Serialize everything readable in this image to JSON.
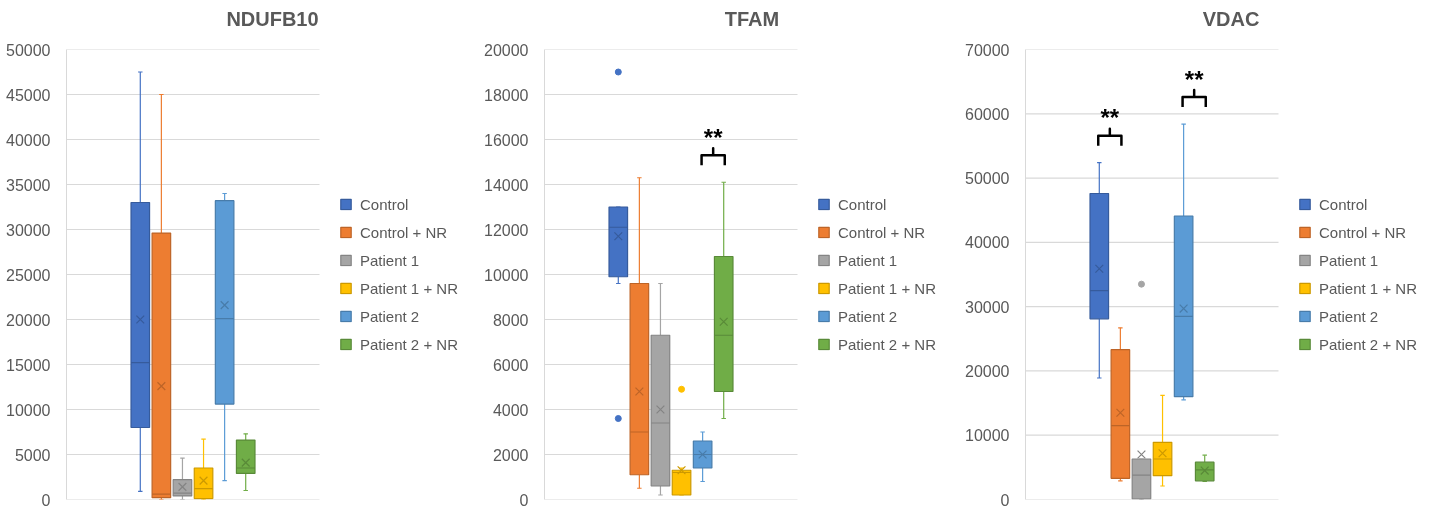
{
  "chart_data": [
    {
      "type": "box",
      "title": "NDUFB10",
      "categories": [
        null
      ],
      "ylim": [
        0,
        50000
      ],
      "yticks": [
        0,
        5000,
        10000,
        15000,
        20000,
        25000,
        30000,
        35000,
        40000,
        45000,
        50000
      ],
      "grid": "y",
      "legend": "right",
      "tick_labels": "y",
      "series": [
        {
          "name": "Control",
          "color": "#4472c4",
          "boxes": [
            {
              "low": 900,
              "q1": 8000,
              "median": 15200,
              "q3": 33000,
              "high": 47500,
              "mean": 20000
            }
          ]
        },
        {
          "name": "Control + NR",
          "color": "#ed7d31",
          "boxes": [
            {
              "low": 0,
              "q1": 200,
              "median": 600,
              "q3": 29600,
              "high": 45000,
              "mean": 12600
            }
          ]
        },
        {
          "name": "Patient 1",
          "color": "#a5a5a5",
          "boxes": [
            {
              "low": 0,
              "q1": 400,
              "median": 700,
              "q3": 2200,
              "high": 4600,
              "mean": 1400
            }
          ]
        },
        {
          "name": "Patient 1 + NR",
          "color": "#ffc000",
          "boxes": [
            {
              "low": 0,
              "q1": 100,
              "median": 1200,
              "q3": 3500,
              "high": 6700,
              "mean": 2100
            }
          ]
        },
        {
          "name": "Patient 2",
          "color": "#5b9bd5",
          "boxes": [
            {
              "low": 2100,
              "q1": 10600,
              "median": 20100,
              "q3": 33200,
              "high": 34000,
              "mean": 21600
            }
          ]
        },
        {
          "name": "Patient 2 + NR",
          "color": "#70ad47",
          "boxes": [
            {
              "low": 1000,
              "q1": 2900,
              "median": 3500,
              "q3": 6600,
              "high": 7300,
              "mean": 4100
            }
          ]
        }
      ]
    },
    {
      "type": "box",
      "title": "TFAM",
      "categories": [
        null
      ],
      "ylim": [
        0,
        20000
      ],
      "yticks": [
        0,
        2000,
        4000,
        6000,
        8000,
        10000,
        12000,
        14000,
        16000,
        18000,
        20000
      ],
      "grid": "y",
      "legend": "right",
      "tick_labels": "y",
      "annotations": [
        "**"
      ],
      "series": [
        {
          "name": "Control",
          "color": "#4472c4",
          "boxes": [
            {
              "low": 9600,
              "q1": 9900,
              "median": 12100,
              "q3": 13000,
              "high": 13000,
              "mean": 11700,
              "outliers": [
                19000,
                3600
              ]
            }
          ]
        },
        {
          "name": "Control + NR",
          "color": "#ed7d31",
          "boxes": [
            {
              "low": 500,
              "q1": 1100,
              "median": 3000,
              "q3": 9600,
              "high": 14300,
              "mean": 4800
            }
          ]
        },
        {
          "name": "Patient 1",
          "color": "#a5a5a5",
          "boxes": [
            {
              "low": 200,
              "q1": 600,
              "median": 3400,
              "q3": 7300,
              "high": 9600,
              "mean": 4000
            }
          ]
        },
        {
          "name": "Patient 1 + NR",
          "color": "#ffc000",
          "boxes": [
            {
              "low": 200,
              "q1": 200,
              "median": 1200,
              "q3": 1300,
              "high": 1400,
              "mean": 1300,
              "outliers": [
                4900
              ]
            }
          ]
        },
        {
          "name": "Patient 2",
          "color": "#5b9bd5",
          "boxes": [
            {
              "low": 800,
              "q1": 1400,
              "median": 2000,
              "q3": 2600,
              "high": 3000,
              "mean": 2000
            }
          ]
        },
        {
          "name": "Patient 2 + NR",
          "color": "#70ad47",
          "boxes": [
            {
              "low": 3600,
              "q1": 4800,
              "median": 7300,
              "q3": 10800,
              "high": 14100,
              "mean": 7900
            }
          ]
        }
      ]
    },
    {
      "type": "box",
      "title": "VDAC",
      "categories": [
        null
      ],
      "ylim": [
        0,
        70000
      ],
      "yticks": [
        0,
        10000,
        20000,
        30000,
        40000,
        50000,
        60000,
        70000
      ],
      "grid": "y",
      "legend": "right",
      "tick_labels": "y",
      "annotations": [
        "**",
        "**"
      ],
      "series": [
        {
          "name": "Control",
          "color": "#4472c4",
          "boxes": [
            {
              "low": 18900,
              "q1": 28100,
              "median": 32500,
              "q3": 47600,
              "high": 52400,
              "mean": 35900
            }
          ]
        },
        {
          "name": "Control + NR",
          "color": "#ed7d31",
          "boxes": [
            {
              "low": 2900,
              "q1": 3300,
              "median": 11500,
              "q3": 23300,
              "high": 26700,
              "mean": 13500
            }
          ]
        },
        {
          "name": "Patient 1",
          "color": "#a5a5a5",
          "boxes": [
            {
              "low": 0,
              "q1": 100,
              "median": 3800,
              "q3": 6300,
              "high": 6300,
              "mean": 7000,
              "outliers": [
                33500
              ]
            }
          ]
        },
        {
          "name": "Patient 1 + NR",
          "color": "#ffc000",
          "boxes": [
            {
              "low": 2100,
              "q1": 3700,
              "median": 6300,
              "q3": 8900,
              "high": 16200,
              "mean": 7200
            }
          ]
        },
        {
          "name": "Patient 2",
          "color": "#5b9bd5",
          "boxes": [
            {
              "low": 15500,
              "q1": 16000,
              "median": 28500,
              "q3": 44100,
              "high": 58400,
              "mean": 29700
            }
          ]
        },
        {
          "name": "Patient 2 + NR",
          "color": "#70ad47",
          "boxes": [
            {
              "low": 2800,
              "q1": 2900,
              "median": 4600,
              "q3": 5800,
              "high": 6900,
              "mean": 4500
            }
          ]
        }
      ]
    }
  ]
}
